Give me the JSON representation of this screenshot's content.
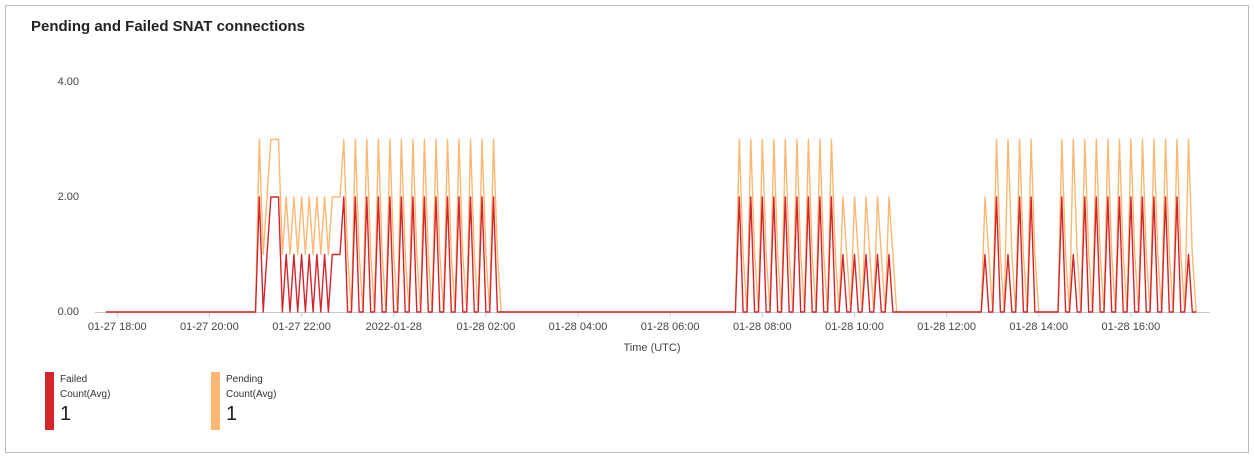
{
  "chart_data": {
    "type": "line",
    "title": "Pending and Failed SNAT connections",
    "x_label": "Time (UTC)",
    "x": [
      "2022-01-27T17:45",
      "2022-01-27T20:55",
      "2022-01-27T21:00",
      "2022-01-27T21:05",
      "2022-01-27T21:10",
      "2022-01-27T21:15",
      "2022-01-27T21:20",
      "2022-01-27T21:25",
      "2022-01-27T21:30",
      "2022-01-27T21:35",
      "2022-01-27T21:40",
      "2022-01-27T21:45",
      "2022-01-27T21:50",
      "2022-01-27T21:55",
      "2022-01-27T22:00",
      "2022-01-27T22:05",
      "2022-01-27T22:10",
      "2022-01-27T22:15",
      "2022-01-27T22:20",
      "2022-01-27T22:25",
      "2022-01-27T22:30",
      "2022-01-27T22:35",
      "2022-01-27T22:40",
      "2022-01-27T22:45",
      "2022-01-27T22:50",
      "2022-01-27T22:55",
      "2022-01-27T23:00",
      "2022-01-27T23:05",
      "2022-01-27T23:10",
      "2022-01-27T23:15",
      "2022-01-27T23:20",
      "2022-01-27T23:25",
      "2022-01-27T23:30",
      "2022-01-27T23:35",
      "2022-01-27T23:40",
      "2022-01-27T23:45",
      "2022-01-27T23:50",
      "2022-01-27T23:55",
      "2022-01-28T00:00",
      "2022-01-28T00:05",
      "2022-01-28T00:10",
      "2022-01-28T00:15",
      "2022-01-28T00:20",
      "2022-01-28T00:25",
      "2022-01-28T00:30",
      "2022-01-28T00:35",
      "2022-01-28T00:40",
      "2022-01-28T00:45",
      "2022-01-28T00:50",
      "2022-01-28T00:55",
      "2022-01-28T01:00",
      "2022-01-28T01:05",
      "2022-01-28T01:10",
      "2022-01-28T01:15",
      "2022-01-28T01:20",
      "2022-01-28T01:25",
      "2022-01-28T01:30",
      "2022-01-28T01:35",
      "2022-01-28T01:40",
      "2022-01-28T01:45",
      "2022-01-28T01:50",
      "2022-01-28T01:55",
      "2022-01-28T02:00",
      "2022-01-28T02:05",
      "2022-01-28T02:10",
      "2022-01-28T02:15",
      "2022-01-28T02:20",
      "2022-01-28T07:25",
      "2022-01-28T07:30",
      "2022-01-28T07:35",
      "2022-01-28T07:40",
      "2022-01-28T07:45",
      "2022-01-28T07:50",
      "2022-01-28T07:55",
      "2022-01-28T08:00",
      "2022-01-28T08:05",
      "2022-01-28T08:10",
      "2022-01-28T08:15",
      "2022-01-28T08:20",
      "2022-01-28T08:25",
      "2022-01-28T08:30",
      "2022-01-28T08:35",
      "2022-01-28T08:40",
      "2022-01-28T08:45",
      "2022-01-28T08:50",
      "2022-01-28T08:55",
      "2022-01-28T09:00",
      "2022-01-28T09:05",
      "2022-01-28T09:10",
      "2022-01-28T09:15",
      "2022-01-28T09:20",
      "2022-01-28T09:25",
      "2022-01-28T09:30",
      "2022-01-28T09:35",
      "2022-01-28T09:40",
      "2022-01-28T09:45",
      "2022-01-28T09:50",
      "2022-01-28T09:55",
      "2022-01-28T10:00",
      "2022-01-28T10:05",
      "2022-01-28T10:10",
      "2022-01-28T10:15",
      "2022-01-28T10:20",
      "2022-01-28T10:25",
      "2022-01-28T10:30",
      "2022-01-28T10:35",
      "2022-01-28T10:40",
      "2022-01-28T10:45",
      "2022-01-28T10:50",
      "2022-01-28T10:55",
      "2022-01-28T12:45",
      "2022-01-28T12:50",
      "2022-01-28T12:55",
      "2022-01-28T13:00",
      "2022-01-28T13:05",
      "2022-01-28T13:10",
      "2022-01-28T13:15",
      "2022-01-28T13:20",
      "2022-01-28T13:25",
      "2022-01-28T13:30",
      "2022-01-28T13:35",
      "2022-01-28T13:40",
      "2022-01-28T13:45",
      "2022-01-28T13:50",
      "2022-01-28T13:55",
      "2022-01-28T14:00",
      "2022-01-28T14:25",
      "2022-01-28T14:30",
      "2022-01-28T14:35",
      "2022-01-28T14:40",
      "2022-01-28T14:45",
      "2022-01-28T14:50",
      "2022-01-28T14:55",
      "2022-01-28T15:00",
      "2022-01-28T15:05",
      "2022-01-28T15:10",
      "2022-01-28T15:15",
      "2022-01-28T15:20",
      "2022-01-28T15:25",
      "2022-01-28T15:30",
      "2022-01-28T15:35",
      "2022-01-28T15:40",
      "2022-01-28T15:45",
      "2022-01-28T15:50",
      "2022-01-28T15:55",
      "2022-01-28T16:00",
      "2022-01-28T16:05",
      "2022-01-28T16:10",
      "2022-01-28T16:15",
      "2022-01-28T16:20",
      "2022-01-28T16:25",
      "2022-01-28T16:30",
      "2022-01-28T16:35",
      "2022-01-28T16:40",
      "2022-01-28T16:45",
      "2022-01-28T16:50",
      "2022-01-28T16:55",
      "2022-01-28T17:00",
      "2022-01-28T17:05",
      "2022-01-28T17:10",
      "2022-01-28T17:15",
      "2022-01-28T17:20",
      "2022-01-28T17:25"
    ],
    "series": [
      {
        "name": "Failed Count(Avg)",
        "color": "#d3262c",
        "summary": 1,
        "values": [
          0,
          0,
          0,
          2,
          0,
          1,
          2,
          2,
          2,
          0,
          1,
          0,
          1,
          0,
          1,
          0,
          1,
          0,
          1,
          0,
          1,
          0,
          1,
          1,
          1,
          2,
          0,
          0,
          2,
          0,
          0,
          2,
          0,
          0,
          2,
          0,
          0,
          2,
          0,
          0,
          2,
          0,
          0,
          2,
          0,
          0,
          2,
          0,
          0,
          2,
          0,
          0,
          2,
          0,
          0,
          2,
          0,
          0,
          2,
          0,
          0,
          2,
          0,
          0,
          2,
          0,
          0,
          0,
          2,
          0,
          0,
          2,
          0,
          0,
          2,
          0,
          0,
          2,
          0,
          0,
          2,
          0,
          0,
          2,
          0,
          0,
          2,
          0,
          0,
          2,
          0,
          0,
          2,
          0,
          0,
          1,
          0,
          0,
          1,
          0,
          0,
          1,
          0,
          0,
          1,
          0,
          0,
          1,
          0,
          0,
          0,
          1,
          0,
          0,
          2,
          0,
          0,
          1,
          0,
          0,
          2,
          0,
          0,
          2,
          0,
          0,
          0,
          2,
          0,
          0,
          1,
          0,
          0,
          2,
          0,
          0,
          2,
          0,
          0,
          2,
          0,
          0,
          2,
          0,
          0,
          2,
          0,
          0,
          2,
          0,
          0,
          2,
          0,
          0,
          2,
          0,
          0,
          2,
          0,
          0,
          1,
          0,
          0
        ]
      },
      {
        "name": "Pending Count(Avg)",
        "color": "#fdb772",
        "summary": 1,
        "values": [
          0,
          0,
          0,
          3,
          1,
          2,
          3,
          3,
          3,
          1,
          2,
          1,
          2,
          1,
          2,
          1,
          2,
          1,
          2,
          1,
          2,
          1,
          2,
          2,
          2,
          3,
          1,
          0,
          3,
          1,
          0,
          3,
          1,
          0,
          3,
          1,
          0,
          3,
          1,
          0,
          3,
          1,
          0,
          3,
          1,
          0,
          3,
          1,
          0,
          3,
          1,
          0,
          3,
          1,
          0,
          3,
          1,
          0,
          3,
          1,
          0,
          3,
          1,
          0,
          3,
          1,
          0,
          0,
          3,
          1,
          0,
          3,
          1,
          0,
          3,
          1,
          0,
          3,
          1,
          0,
          3,
          1,
          0,
          3,
          1,
          0,
          3,
          1,
          0,
          3,
          1,
          0,
          3,
          1,
          0,
          2,
          1,
          0,
          2,
          1,
          0,
          2,
          1,
          0,
          2,
          1,
          0,
          2,
          1,
          0,
          0,
          2,
          1,
          0,
          3,
          1,
          0,
          3,
          1,
          0,
          3,
          1,
          0,
          3,
          1,
          0,
          0,
          3,
          1,
          0,
          3,
          1,
          0,
          3,
          1,
          0,
          3,
          1,
          0,
          3,
          1,
          0,
          3,
          1,
          0,
          3,
          1,
          0,
          3,
          1,
          0,
          3,
          1,
          0,
          3,
          1,
          0,
          3,
          1,
          0,
          3,
          1,
          0
        ]
      }
    ],
    "xlim": [
      "2022-01-27T17:31",
      "2022-01-28T17:43"
    ],
    "xticks": [
      {
        "value": "2022-01-27T18:00",
        "label": "01-27 18:00"
      },
      {
        "value": "2022-01-27T20:00",
        "label": "01-27 20:00"
      },
      {
        "value": "2022-01-27T22:00",
        "label": "01-27 22:00"
      },
      {
        "value": "2022-01-28T00:00",
        "label": "2022-01-28"
      },
      {
        "value": "2022-01-28T02:00",
        "label": "01-28 02:00"
      },
      {
        "value": "2022-01-28T04:00",
        "label": "01-28 04:00"
      },
      {
        "value": "2022-01-28T06:00",
        "label": "01-28 06:00"
      },
      {
        "value": "2022-01-28T08:00",
        "label": "01-28 08:00"
      },
      {
        "value": "2022-01-28T10:00",
        "label": "01-28 10:00"
      },
      {
        "value": "2022-01-28T12:00",
        "label": "01-28 12:00"
      },
      {
        "value": "2022-01-28T14:00",
        "label": "01-28 14:00"
      },
      {
        "value": "2022-01-28T16:00",
        "label": "01-28 16:00"
      }
    ],
    "ylim": [
      0,
      4
    ],
    "yticks": [
      {
        "value": 0,
        "label": "0.00"
      },
      {
        "value": 2,
        "label": "2.00"
      },
      {
        "value": 4,
        "label": "4.00"
      }
    ],
    "grid": false
  }
}
